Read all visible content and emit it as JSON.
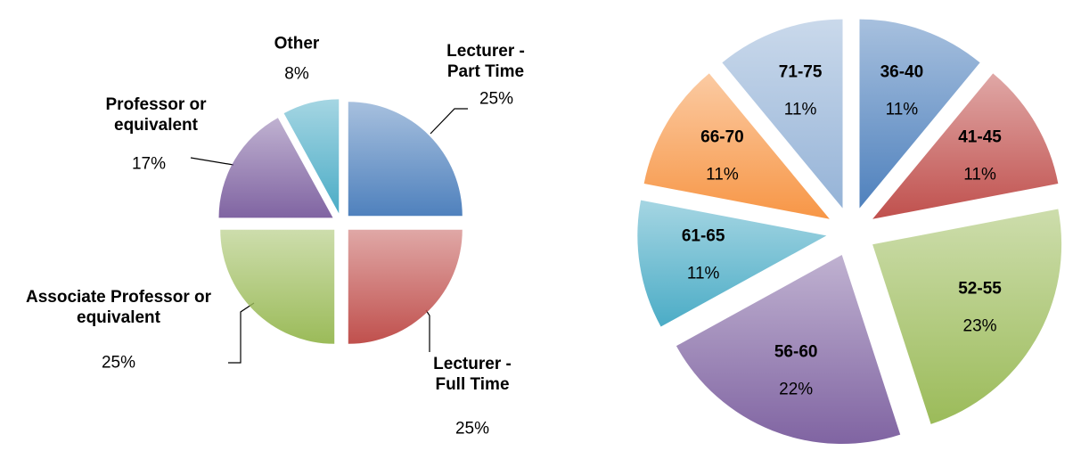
{
  "chart_data": [
    {
      "type": "pie",
      "categories": [
        "Lecturer -\nPart Time",
        "Lecturer -\nFull Time",
        "Associate Professor or\nequivalent",
        "Professor or\nequivalent",
        "Other"
      ],
      "values": [
        25,
        25,
        25,
        17,
        8
      ],
      "value_labels": [
        "25%",
        "25%",
        "25%",
        "17%",
        "8%"
      ],
      "colors": [
        "#4f81bd",
        "#c0504d",
        "#9bbb59",
        "#8064a2",
        "#4bacc6"
      ]
    },
    {
      "type": "pie",
      "categories": [
        "36-40",
        "41-45",
        "52-55",
        "56-60",
        "61-65",
        "66-70",
        "71-75"
      ],
      "values": [
        11,
        11,
        23,
        22,
        11,
        11,
        11
      ],
      "value_labels": [
        "11%",
        "11%",
        "23%",
        "22%",
        "11%",
        "11%",
        "11%"
      ],
      "colors": [
        "#4f81bd",
        "#c0504d",
        "#9bbb59",
        "#8064a2",
        "#4bacc6",
        "#f79646",
        "#95b3d7"
      ]
    }
  ]
}
